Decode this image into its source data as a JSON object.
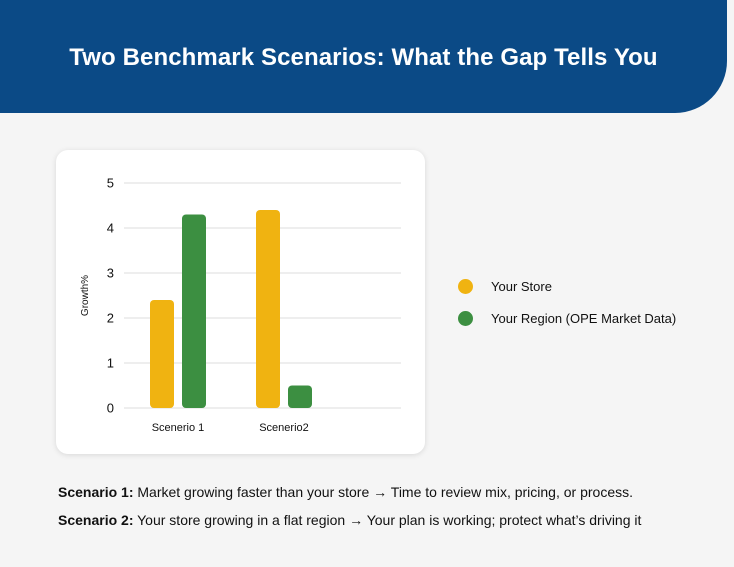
{
  "header": {
    "title": "Two Benchmark Scenarios: What the Gap Tells You"
  },
  "colors": {
    "header_bg": "#0b4a86",
    "your_store": "#f0b311",
    "your_region": "#3c8f41"
  },
  "chart_data": {
    "type": "bar",
    "categories": [
      "Scenerio 1",
      "Scenerio2"
    ],
    "series": [
      {
        "name": "Your Store",
        "color": "#f0b311",
        "values": [
          2.4,
          4.4
        ]
      },
      {
        "name": "Your Region (OPE Market Data)",
        "color": "#3c8f41",
        "values": [
          4.3,
          0.5
        ]
      }
    ],
    "ylabel": "Growth%",
    "xlabel": "",
    "ylim": [
      0,
      5
    ],
    "yticks": [
      0,
      1,
      2,
      3,
      4,
      5
    ],
    "grid": true,
    "legend_position": "right"
  },
  "notes": [
    {
      "label": "Scenario 1:",
      "text": " Market growing faster than your store → Time to review mix, pricing, or process."
    },
    {
      "label": "Scenario 2:",
      "text": " Your store growing in a flat region → Your plan is working; protect what’s driving it"
    }
  ]
}
